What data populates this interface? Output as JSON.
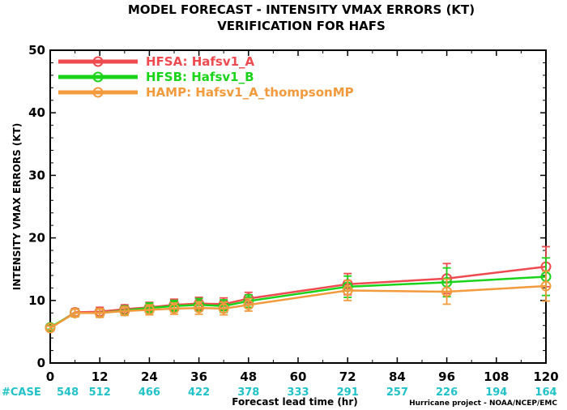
{
  "chart_data": {
    "type": "line",
    "title": "MODEL FORECAST - INTENSITY VMAX ERRORS (KT)",
    "subtitle": "VERIFICATION FOR HAFS",
    "xlabel": "Forecast lead time (hr)",
    "ylabel": "INTENSITY VMAX ERRORS (KT)",
    "xlim": [
      0,
      120
    ],
    "ylim": [
      0,
      50
    ],
    "x_ticks": [
      0,
      12,
      24,
      36,
      48,
      60,
      72,
      84,
      96,
      108,
      120
    ],
    "y_ticks": [
      0,
      10,
      20,
      30,
      40,
      50
    ],
    "grid": false,
    "legend_position": "top-left",
    "case_label": "#CASE",
    "cases": [
      {
        "x": 0,
        "n": "548"
      },
      {
        "x": 12,
        "n": "512"
      },
      {
        "x": 24,
        "n": "466"
      },
      {
        "x": 36,
        "n": "422"
      },
      {
        "x": 48,
        "n": "378"
      },
      {
        "x": 60,
        "n": "333"
      },
      {
        "x": 72,
        "n": "291"
      },
      {
        "x": 84,
        "n": "257"
      },
      {
        "x": 96,
        "n": "226"
      },
      {
        "x": 108,
        "n": "194"
      },
      {
        "x": 120,
        "n": "164"
      }
    ],
    "series": [
      {
        "name": "HFSA:  Hafsv1_A",
        "color": "#ef4a4f",
        "x": [
          0,
          6,
          12,
          18,
          24,
          30,
          36,
          42,
          48,
          72,
          96,
          120
        ],
        "y": [
          5.6,
          8.1,
          8.2,
          8.6,
          8.9,
          9.3,
          9.5,
          9.4,
          10.3,
          12.6,
          13.5,
          15.4
        ],
        "err": [
          0.3,
          0.6,
          0.7,
          0.7,
          0.8,
          0.9,
          1.0,
          1.0,
          1.0,
          1.7,
          2.4,
          3.2
        ]
      },
      {
        "name": "HFSB:  Hafsv1_B",
        "color": "#19d419",
        "x": [
          0,
          6,
          12,
          18,
          24,
          30,
          36,
          42,
          48,
          72,
          96,
          120
        ],
        "y": [
          5.7,
          8.0,
          8.0,
          8.4,
          8.8,
          9.1,
          9.3,
          9.1,
          9.9,
          12.2,
          12.9,
          13.8
        ],
        "err": [
          0.3,
          0.6,
          0.7,
          0.7,
          0.8,
          0.9,
          1.0,
          1.0,
          1.0,
          1.7,
          2.3,
          3.0
        ]
      },
      {
        "name": "HAMP:  Hafsv1_A_thompsonMP",
        "color": "#f29a3c",
        "x": [
          0,
          6,
          12,
          18,
          24,
          30,
          36,
          42,
          48,
          72,
          96,
          120
        ],
        "y": [
          5.6,
          8.0,
          8.0,
          8.3,
          8.5,
          8.7,
          8.8,
          8.7,
          9.3,
          11.6,
          11.4,
          12.3
        ],
        "err": [
          0.3,
          0.6,
          0.7,
          0.7,
          0.8,
          0.9,
          1.0,
          1.0,
          1.0,
          1.6,
          2.0,
          2.4
        ]
      }
    ],
    "credit": "Hurricane project - NOAA/NCEP/EMC"
  }
}
